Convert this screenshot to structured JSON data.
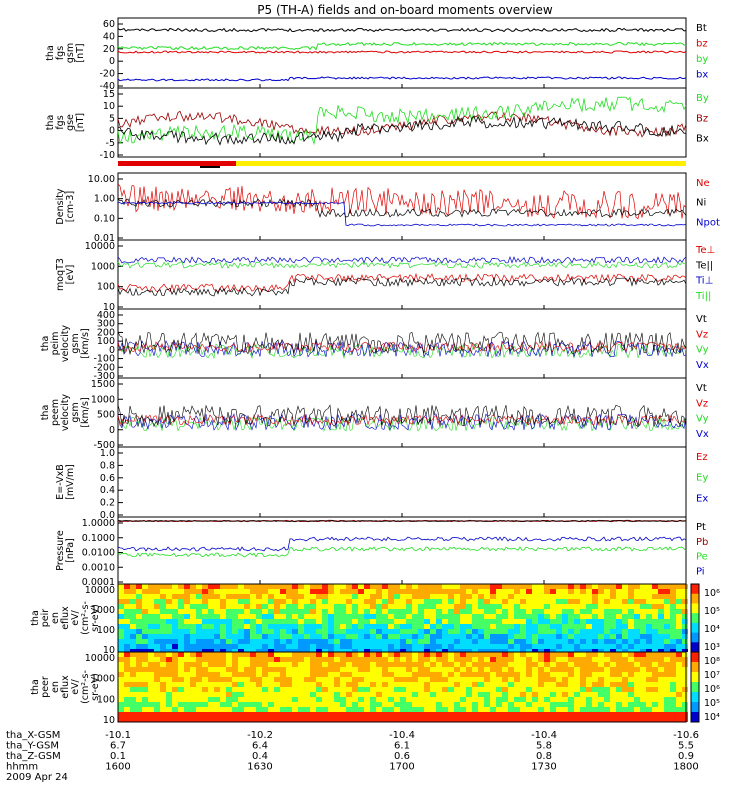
{
  "title": "P5 (TH-A) fields and on-board moments overview",
  "colors": {
    "black": "#000000",
    "red": "#e00000",
    "green": "#22dd22",
    "blue": "#0000cc",
    "yellow": "#ffee00",
    "darkred": "#990000"
  },
  "chart_data": {
    "type": "line",
    "x_ticks": [
      "1600",
      "1630",
      "1700",
      "1730",
      "1800"
    ],
    "footer": {
      "rows": [
        {
          "label": "tha_X-GSM",
          "values": [
            "-10.1",
            "-10.2",
            "-10.4",
            "-10.4",
            "-10.6"
          ]
        },
        {
          "label": "tha_Y-GSM",
          "values": [
            "6.7",
            "6.4",
            "6.1",
            "5.8",
            "5.5"
          ]
        },
        {
          "label": "tha_Z-GSM",
          "values": [
            "0.1",
            "0.4",
            "0.6",
            "0.8",
            "0.9"
          ]
        },
        {
          "label": "hhmm",
          "values": [
            "1600",
            "1630",
            "1700",
            "1730",
            "1800"
          ]
        }
      ],
      "date": "2009 Apr 24"
    },
    "panels": [
      {
        "ylabel": [
          "tha",
          "fgs",
          "gsm",
          "[nT]"
        ],
        "yticks": [
          "60",
          "40",
          "20",
          "0",
          "-20",
          "-40"
        ],
        "legend": [
          {
            "name": "Bt",
            "color": "black"
          },
          {
            "name": "bz",
            "color": "red"
          },
          {
            "name": "by",
            "color": "green"
          },
          {
            "name": "bx",
            "color": "blue"
          }
        ]
      },
      {
        "ylabel": [
          "tha",
          "fgs",
          "gse",
          "[nT]"
        ],
        "yticks": [
          "15",
          "10",
          "5",
          "0",
          "-5",
          "-10"
        ],
        "legend": [
          {
            "name": "By",
            "color": "green"
          },
          {
            "name": "Bz",
            "color": "darkred"
          },
          {
            "name": "Bx",
            "color": "black"
          }
        ]
      },
      {
        "ylabel": [
          "Density",
          "[cm-3]"
        ],
        "yticks": [
          "10.00",
          "1.00",
          "0.10",
          "0.01"
        ],
        "legend": [
          {
            "name": "Ne",
            "color": "red"
          },
          {
            "name": "Ni",
            "color": "black"
          },
          {
            "name": "Npot",
            "color": "blue"
          }
        ]
      },
      {
        "ylabel": [
          "moqT3",
          "[eV]"
        ],
        "yticks": [
          "10000",
          "1000",
          "100",
          "10"
        ],
        "legend": [
          {
            "name": "Te⊥",
            "color": "red"
          },
          {
            "name": "Te||",
            "color": "black"
          },
          {
            "name": "Ti⊥",
            "color": "blue"
          },
          {
            "name": "Ti||",
            "color": "green"
          }
        ]
      },
      {
        "ylabel": [
          "tha",
          "peim",
          "velocity",
          "gsm",
          "[km/s]"
        ],
        "yticks": [
          "400",
          "300",
          "200",
          "100",
          "0",
          "-100",
          "-200",
          "-300"
        ],
        "legend": [
          {
            "name": "Vt",
            "color": "black"
          },
          {
            "name": "Vz",
            "color": "red"
          },
          {
            "name": "Vy",
            "color": "green"
          },
          {
            "name": "Vx",
            "color": "blue"
          }
        ]
      },
      {
        "ylabel": [
          "tha",
          "peem",
          "velocity",
          "gsm",
          "[km/s]"
        ],
        "yticks": [
          "1500",
          "1000",
          "500",
          "0",
          "-500"
        ],
        "legend": [
          {
            "name": "Vt",
            "color": "black"
          },
          {
            "name": "Vz",
            "color": "red"
          },
          {
            "name": "Vy",
            "color": "green"
          },
          {
            "name": "Vx",
            "color": "blue"
          }
        ]
      },
      {
        "ylabel": [
          "E=-VxB",
          "[mV/m]"
        ],
        "yticks": [
          "1.0",
          "0.8",
          "0.6",
          "0.4",
          "0.2",
          "0.0"
        ],
        "legend": [
          {
            "name": "Ez",
            "color": "red"
          },
          {
            "name": "Ey",
            "color": "green"
          },
          {
            "name": "Ex",
            "color": "blue"
          }
        ]
      },
      {
        "ylabel": [
          "Pressure",
          "[nPa]"
        ],
        "yticks": [
          "1.0000",
          "0.1000",
          "0.0100",
          "0.0010",
          "0.0001"
        ],
        "legend": [
          {
            "name": "Pt",
            "color": "black"
          },
          {
            "name": "Pb",
            "color": "darkred"
          },
          {
            "name": "Pe",
            "color": "green"
          },
          {
            "name": "Pi",
            "color": "blue"
          }
        ]
      },
      {
        "ylabel": [
          "tha",
          "peir",
          "en",
          "eflux",
          "eV/",
          "(cm²-s-",
          "sr-eV)"
        ],
        "yticks": [
          "10000",
          "1000",
          "100",
          "10"
        ],
        "cbar_ticks": [
          "10⁶",
          "10⁵",
          "10⁴",
          "10³"
        ]
      },
      {
        "ylabel": [
          "tha",
          "peer",
          "en",
          "eflux",
          "eV/",
          "(cm²-s-",
          "sr-eV)"
        ],
        "yticks": [
          "10000",
          "1000",
          "100",
          "10"
        ],
        "cbar_ticks": [
          "10⁸",
          "10⁷",
          "10⁶",
          "10⁵",
          "10⁴"
        ]
      }
    ]
  }
}
